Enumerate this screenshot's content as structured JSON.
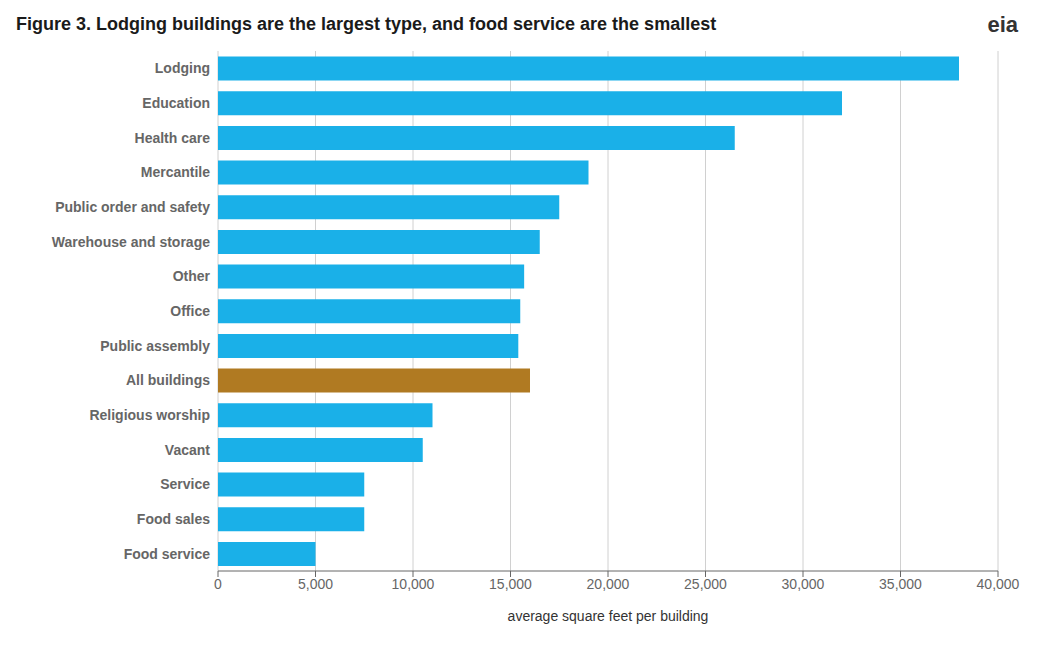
{
  "chart_data": {
    "type": "bar",
    "orientation": "horizontal",
    "title": "Figure 3. Lodging buildings are the largest type, and food service are the smallest",
    "xlabel": "average square feet per building",
    "categories": [
      "Lodging",
      "Education",
      "Health care",
      "Mercantile",
      "Public order and safety",
      "Warehouse and storage",
      "Other",
      "Office",
      "Public assembly",
      "All buildings",
      "Religious worship",
      "Vacant",
      "Service",
      "Food sales",
      "Food service"
    ],
    "values": [
      38000,
      32000,
      26500,
      19000,
      17500,
      16500,
      15700,
      15500,
      15400,
      16000,
      11000,
      10500,
      7500,
      7500,
      5000
    ],
    "colors": [
      "#1ab0e8",
      "#1ab0e8",
      "#1ab0e8",
      "#1ab0e8",
      "#1ab0e8",
      "#1ab0e8",
      "#1ab0e8",
      "#1ab0e8",
      "#1ab0e8",
      "#b07a22",
      "#1ab0e8",
      "#1ab0e8",
      "#1ab0e8",
      "#1ab0e8",
      "#1ab0e8"
    ],
    "xlim": [
      0,
      40000
    ],
    "xticks": [
      0,
      {
        "value": 5000,
        "label": "5,000"
      },
      {
        "value": 10000,
        "label": "10,000"
      },
      {
        "value": 15000,
        "label": "15,000"
      },
      {
        "value": 20000,
        "label": "20,000"
      },
      {
        "value": 25000,
        "label": "25,000"
      },
      {
        "value": 30000,
        "label": "30,000"
      },
      {
        "value": 35000,
        "label": "35,000"
      },
      {
        "value": 40000,
        "label": "40,000"
      }
    ],
    "grid": true,
    "annotations": [
      "eia"
    ]
  }
}
